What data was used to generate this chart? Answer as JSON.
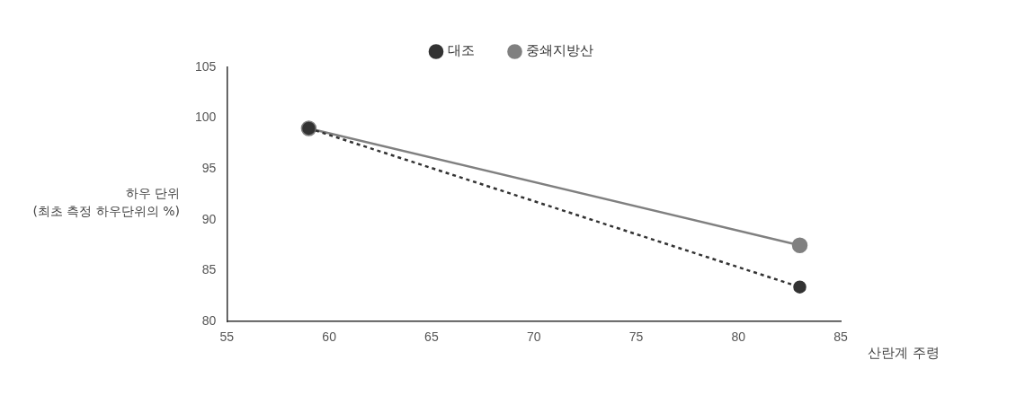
{
  "chart_data": {
    "type": "line",
    "xlabel": "산란계 주령",
    "ylabel": "하우 단위\n(최초 측정 하우단위의 %)",
    "xlim": [
      55,
      85
    ],
    "xticks": [
      55,
      60,
      65,
      70,
      75,
      80,
      85
    ],
    "ylim": [
      80,
      105
    ],
    "yticks": [
      80,
      85,
      90,
      95,
      100,
      105
    ],
    "grid": false,
    "legend": "top",
    "marker": "circle",
    "x": [
      59,
      83
    ],
    "series": [
      {
        "name": "대조",
        "color": "#333333",
        "line_style": "dashed",
        "values": [
          99,
          83.4
        ]
      },
      {
        "name": "중쇄지방산",
        "color": "#808080",
        "line_style": "solid",
        "values": [
          99,
          87.5
        ]
      }
    ]
  }
}
